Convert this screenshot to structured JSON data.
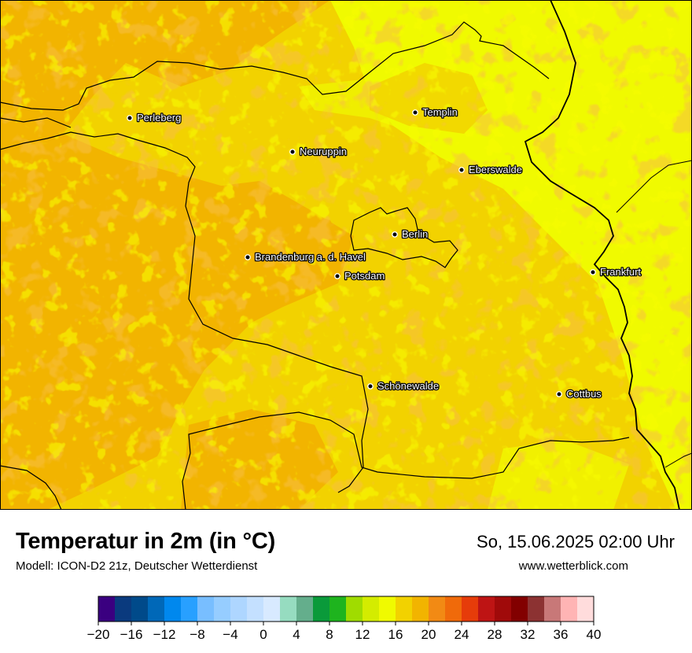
{
  "map": {
    "cities": [
      {
        "name": "Perleberg"
      },
      {
        "name": "Templin"
      },
      {
        "name": "Neuruppin"
      },
      {
        "name": "Eberswalde"
      },
      {
        "name": "Berlin"
      },
      {
        "name": "Brandenburg a. d. Havel"
      },
      {
        "name": "Potsdam"
      },
      {
        "name": "Frankfurt"
      },
      {
        "name": "Schönewalde"
      },
      {
        "name": "Cottbus"
      }
    ]
  },
  "footer": {
    "title": "Temperatur in 2m (in °C)",
    "subtitle": "Modell: ICON-D2 21z, Deutscher Wetterdienst",
    "datetime": "So, 15.06.2025 02:00 Uhr",
    "website": "www.wetterblick.com"
  },
  "legend": {
    "ticks": [
      "−20",
      "−16",
      "−12",
      "−8",
      "−4",
      "0",
      "4",
      "8",
      "12",
      "16",
      "20",
      "24",
      "28",
      "32",
      "36",
      "40"
    ],
    "colors": [
      "#3a0080",
      "#0a3a7e",
      "#004a8a",
      "#0068b8",
      "#0088ee",
      "#28a0ff",
      "#78beff",
      "#96cdff",
      "#aed6ff",
      "#c4e0ff",
      "#d8eaff",
      "#96dcc0",
      "#64ae8c",
      "#0a9a3a",
      "#1eb41e",
      "#a0dc00",
      "#d4ec00",
      "#f0fa00",
      "#f2d200",
      "#f2b400",
      "#f28a14",
      "#f06a0a",
      "#e63c0a",
      "#be1414",
      "#a00a0a",
      "#820000",
      "#8c3232",
      "#c87878",
      "#ffb4b4",
      "#ffdcdc"
    ]
  }
}
